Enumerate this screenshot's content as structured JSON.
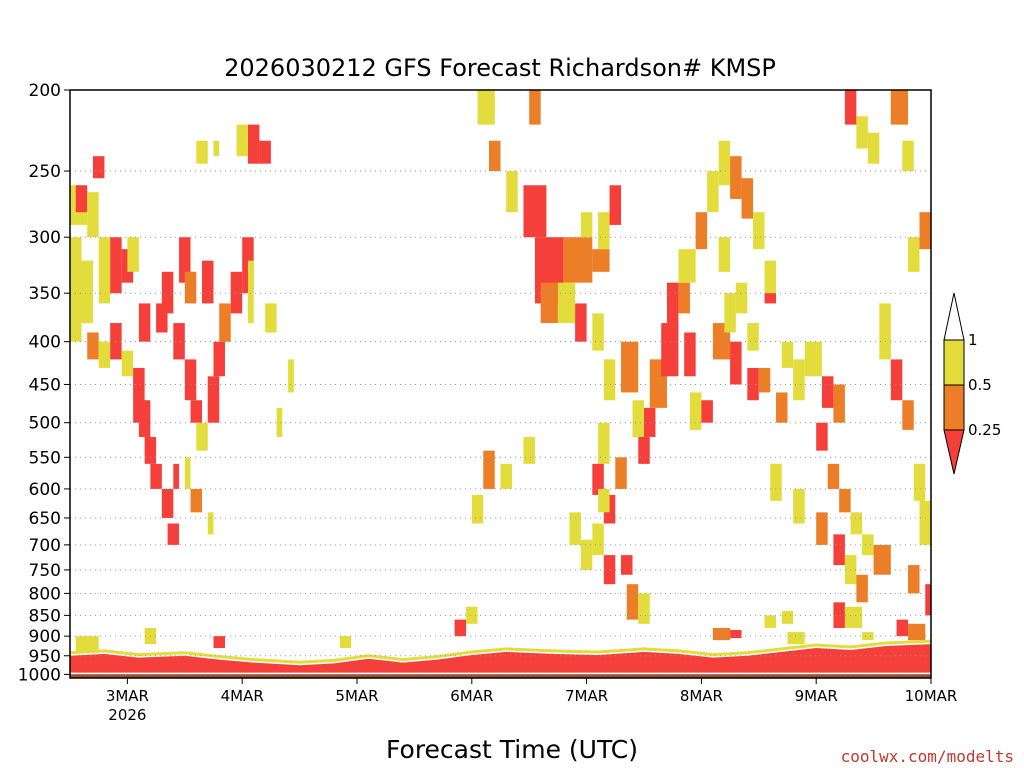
{
  "chart_data": {
    "type": "heatmap",
    "title": "2026030212 GFS Forecast Richardson# KMSP",
    "xlabel": "Forecast Time (UTC)",
    "ylabel": "",
    "credit": "coolwx.com/modelts",
    "x_ticks": [
      {
        "t": 0.5,
        "label": "3MAR",
        "sublabel": "2026"
      },
      {
        "t": 1.5,
        "label": "4MAR"
      },
      {
        "t": 2.5,
        "label": "5MAR"
      },
      {
        "t": 3.5,
        "label": "6MAR"
      },
      {
        "t": 4.5,
        "label": "7MAR"
      },
      {
        "t": 5.5,
        "label": "8MAR"
      },
      {
        "t": 6.5,
        "label": "9MAR"
      },
      {
        "t": 7.5,
        "label": "10MAR"
      }
    ],
    "x_range_days": [
      0,
      7.5
    ],
    "y_ticks": [
      200,
      250,
      300,
      350,
      400,
      450,
      500,
      550,
      600,
      650,
      700,
      750,
      800,
      850,
      900,
      950,
      1000
    ],
    "y_range_hpa": [
      200,
      1010
    ],
    "y_scale": "pressure (log-like, decreasing upward)",
    "grid": "dotted horizontal lines at pressure levels",
    "colorbar": {
      "labels": [
        "1",
        "0.5",
        "0.25"
      ],
      "bins": [
        {
          "range": "0.5-1",
          "color": "#e2dd3c"
        },
        {
          "range": "0.25-0.5",
          "color": "#ec7e28"
        },
        {
          "range": "<0.25",
          "color": "#f43f3a"
        }
      ],
      "above_color": "#ffffff"
    },
    "surface_color": "#9a4f2e",
    "colors": {
      "yellow": "#e2dd3c",
      "orange": "#ec7e28",
      "red": "#f43f3a"
    },
    "cells": [
      [
        0.0,
        0.15,
        260,
        290,
        "yellow"
      ],
      [
        0.05,
        0.15,
        260,
        280,
        "red"
      ],
      [
        0.15,
        0.25,
        265,
        300,
        "yellow"
      ],
      [
        0.2,
        0.3,
        240,
        255,
        "red"
      ],
      [
        0.25,
        0.35,
        300,
        360,
        "yellow"
      ],
      [
        0.35,
        0.45,
        300,
        350,
        "red"
      ],
      [
        0.45,
        0.55,
        310,
        340,
        "red"
      ],
      [
        0.5,
        0.6,
        300,
        330,
        "yellow"
      ],
      [
        0.0,
        0.1,
        300,
        400,
        "yellow"
      ],
      [
        0.1,
        0.2,
        320,
        380,
        "yellow"
      ],
      [
        0.15,
        0.25,
        390,
        420,
        "orange"
      ],
      [
        0.25,
        0.35,
        400,
        430,
        "yellow"
      ],
      [
        0.35,
        0.45,
        380,
        420,
        "red"
      ],
      [
        0.45,
        0.55,
        410,
        440,
        "yellow"
      ],
      [
        0.55,
        0.65,
        430,
        500,
        "red"
      ],
      [
        0.6,
        0.7,
        470,
        520,
        "red"
      ],
      [
        0.65,
        0.75,
        520,
        560,
        "red"
      ],
      [
        0.7,
        0.8,
        560,
        600,
        "red"
      ],
      [
        0.8,
        0.9,
        600,
        650,
        "red"
      ],
      [
        0.85,
        0.95,
        660,
        700,
        "red"
      ],
      [
        0.6,
        0.7,
        360,
        400,
        "red"
      ],
      [
        0.75,
        0.85,
        360,
        390,
        "red"
      ],
      [
        0.9,
        1.0,
        380,
        420,
        "red"
      ],
      [
        1.0,
        1.1,
        420,
        470,
        "red"
      ],
      [
        1.05,
        1.15,
        470,
        500,
        "red"
      ],
      [
        1.1,
        1.2,
        500,
        540,
        "yellow"
      ],
      [
        1.2,
        1.3,
        440,
        500,
        "red"
      ],
      [
        1.25,
        1.35,
        400,
        440,
        "red"
      ],
      [
        1.3,
        1.4,
        360,
        400,
        "orange"
      ],
      [
        0.95,
        1.05,
        300,
        340,
        "red"
      ],
      [
        1.0,
        1.1,
        330,
        360,
        "orange"
      ],
      [
        1.15,
        1.25,
        320,
        360,
        "red"
      ],
      [
        1.4,
        1.5,
        330,
        370,
        "red"
      ],
      [
        1.5,
        1.6,
        300,
        350,
        "red"
      ],
      [
        1.55,
        1.65,
        220,
        245,
        "red"
      ],
      [
        1.45,
        1.55,
        220,
        240,
        "yellow"
      ],
      [
        1.65,
        1.75,
        230,
        245,
        "red"
      ],
      [
        1.1,
        1.2,
        230,
        245,
        "yellow"
      ],
      [
        1.25,
        1.3,
        230,
        240,
        "yellow"
      ],
      [
        0.8,
        0.9,
        330,
        370,
        "red"
      ],
      [
        0.9,
        0.95,
        560,
        600,
        "red"
      ],
      [
        1.0,
        1.05,
        550,
        600,
        "yellow"
      ],
      [
        1.05,
        1.15,
        600,
        640,
        "orange"
      ],
      [
        1.2,
        1.25,
        640,
        680,
        "yellow"
      ],
      [
        1.55,
        1.6,
        320,
        380,
        "yellow"
      ],
      [
        1.7,
        1.8,
        360,
        390,
        "yellow"
      ],
      [
        1.8,
        1.85,
        480,
        520,
        "yellow"
      ],
      [
        1.9,
        1.95,
        420,
        460,
        "yellow"
      ],
      [
        3.55,
        3.7,
        200,
        220,
        "yellow"
      ],
      [
        3.65,
        3.75,
        230,
        250,
        "orange"
      ],
      [
        3.8,
        3.9,
        250,
        280,
        "yellow"
      ],
      [
        3.95,
        4.15,
        260,
        300,
        "red"
      ],
      [
        4.05,
        4.3,
        300,
        360,
        "red"
      ],
      [
        4.3,
        4.55,
        300,
        340,
        "orange"
      ],
      [
        4.55,
        4.7,
        310,
        330,
        "orange"
      ],
      [
        4.45,
        4.55,
        280,
        300,
        "yellow"
      ],
      [
        4.6,
        4.7,
        280,
        310,
        "yellow"
      ],
      [
        4.7,
        4.8,
        260,
        290,
        "red"
      ],
      [
        4.0,
        4.1,
        200,
        220,
        "orange"
      ],
      [
        4.1,
        4.25,
        340,
        380,
        "orange"
      ],
      [
        4.25,
        4.4,
        340,
        380,
        "yellow"
      ],
      [
        4.4,
        4.5,
        360,
        400,
        "red"
      ],
      [
        4.55,
        4.65,
        370,
        410,
        "yellow"
      ],
      [
        4.65,
        4.75,
        420,
        470,
        "yellow"
      ],
      [
        4.8,
        4.95,
        400,
        460,
        "orange"
      ],
      [
        4.9,
        5.0,
        470,
        520,
        "yellow"
      ],
      [
        4.75,
        4.85,
        550,
        600,
        "orange"
      ],
      [
        4.95,
        5.05,
        520,
        560,
        "red"
      ],
      [
        5.0,
        5.1,
        480,
        520,
        "red"
      ],
      [
        5.05,
        5.2,
        420,
        480,
        "orange"
      ],
      [
        5.15,
        5.3,
        380,
        440,
        "red"
      ],
      [
        5.2,
        5.3,
        340,
        390,
        "red"
      ],
      [
        5.3,
        5.4,
        340,
        370,
        "orange"
      ],
      [
        5.35,
        5.45,
        390,
        440,
        "red"
      ],
      [
        5.4,
        5.5,
        460,
        510,
        "yellow"
      ],
      [
        5.5,
        5.6,
        470,
        500,
        "red"
      ],
      [
        5.6,
        5.75,
        380,
        420,
        "orange"
      ],
      [
        5.8,
        5.9,
        340,
        370,
        "yellow"
      ],
      [
        5.9,
        6.0,
        380,
        410,
        "yellow"
      ],
      [
        5.9,
        6.0,
        430,
        470,
        "red"
      ],
      [
        6.0,
        6.1,
        430,
        460,
        "orange"
      ],
      [
        6.15,
        6.25,
        460,
        500,
        "orange"
      ],
      [
        6.05,
        6.15,
        330,
        360,
        "red"
      ],
      [
        6.2,
        6.3,
        400,
        430,
        "yellow"
      ],
      [
        6.3,
        6.4,
        420,
        470,
        "yellow"
      ],
      [
        6.4,
        6.55,
        400,
        440,
        "yellow"
      ],
      [
        6.55,
        6.65,
        440,
        480,
        "red"
      ],
      [
        6.65,
        6.75,
        450,
        500,
        "orange"
      ],
      [
        6.5,
        6.6,
        500,
        540,
        "red"
      ],
      [
        6.6,
        6.7,
        560,
        600,
        "orange"
      ],
      [
        6.7,
        6.8,
        600,
        640,
        "orange"
      ],
      [
        6.8,
        6.9,
        640,
        680,
        "yellow"
      ],
      [
        6.9,
        7.0,
        680,
        720,
        "yellow"
      ],
      [
        7.0,
        7.15,
        700,
        760,
        "orange"
      ],
      [
        7.15,
        7.3,
        200,
        220,
        "orange"
      ],
      [
        7.25,
        7.35,
        230,
        250,
        "yellow"
      ],
      [
        7.3,
        7.4,
        300,
        330,
        "yellow"
      ],
      [
        7.4,
        7.5,
        280,
        310,
        "orange"
      ],
      [
        6.75,
        6.85,
        200,
        220,
        "red"
      ],
      [
        6.85,
        6.95,
        215,
        235,
        "yellow"
      ],
      [
        6.95,
        7.05,
        225,
        245,
        "yellow"
      ],
      [
        7.05,
        7.15,
        360,
        420,
        "yellow"
      ],
      [
        7.15,
        7.25,
        420,
        470,
        "red"
      ],
      [
        7.25,
        7.35,
        470,
        510,
        "orange"
      ],
      [
        7.35,
        7.45,
        560,
        620,
        "yellow"
      ],
      [
        7.4,
        7.5,
        620,
        700,
        "yellow"
      ],
      [
        7.3,
        7.4,
        740,
        800,
        "orange"
      ],
      [
        7.45,
        7.5,
        780,
        850,
        "red"
      ],
      [
        6.1,
        6.2,
        560,
        620,
        "yellow"
      ],
      [
        6.3,
        6.4,
        600,
        660,
        "yellow"
      ],
      [
        6.5,
        6.6,
        640,
        700,
        "orange"
      ],
      [
        6.65,
        6.75,
        680,
        740,
        "red"
      ],
      [
        6.75,
        6.85,
        720,
        780,
        "yellow"
      ],
      [
        6.85,
        6.95,
        760,
        820,
        "orange"
      ],
      [
        5.3,
        5.45,
        310,
        340,
        "yellow"
      ],
      [
        5.45,
        5.55,
        280,
        310,
        "orange"
      ],
      [
        5.55,
        5.65,
        250,
        280,
        "yellow"
      ],
      [
        5.65,
        5.75,
        230,
        260,
        "yellow"
      ],
      [
        5.75,
        5.85,
        240,
        270,
        "orange"
      ],
      [
        5.85,
        5.95,
        255,
        285,
        "orange"
      ],
      [
        5.95,
        6.05,
        280,
        310,
        "yellow"
      ],
      [
        6.05,
        6.15,
        320,
        350,
        "yellow"
      ],
      [
        5.65,
        5.75,
        300,
        330,
        "yellow"
      ],
      [
        5.7,
        5.8,
        350,
        390,
        "yellow"
      ],
      [
        5.75,
        5.85,
        400,
        450,
        "red"
      ],
      [
        4.6,
        4.7,
        500,
        560,
        "yellow"
      ],
      [
        4.55,
        4.65,
        560,
        610,
        "red"
      ],
      [
        4.65,
        4.75,
        610,
        660,
        "red"
      ],
      [
        4.55,
        4.65,
        660,
        720,
        "yellow"
      ],
      [
        4.65,
        4.75,
        720,
        780,
        "red"
      ],
      [
        4.6,
        4.7,
        600,
        640,
        "yellow"
      ],
      [
        3.6,
        3.7,
        540,
        600,
        "orange"
      ],
      [
        3.75,
        3.85,
        560,
        600,
        "yellow"
      ],
      [
        3.95,
        4.05,
        520,
        560,
        "yellow"
      ],
      [
        3.5,
        3.6,
        610,
        660,
        "yellow"
      ],
      [
        4.35,
        4.45,
        640,
        700,
        "yellow"
      ],
      [
        4.45,
        4.55,
        690,
        750,
        "yellow"
      ],
      [
        4.8,
        4.9,
        720,
        760,
        "red"
      ],
      [
        4.85,
        4.95,
        780,
        860,
        "orange"
      ],
      [
        4.95,
        5.05,
        800,
        870,
        "yellow"
      ],
      [
        3.45,
        3.55,
        830,
        870,
        "yellow"
      ],
      [
        3.35,
        3.45,
        860,
        900,
        "red"
      ],
      [
        2.35,
        2.45,
        900,
        930,
        "yellow"
      ],
      [
        1.25,
        1.35,
        900,
        930,
        "red"
      ],
      [
        0.65,
        0.75,
        880,
        920,
        "yellow"
      ],
      [
        0.05,
        0.25,
        900,
        940,
        "yellow"
      ],
      [
        5.6,
        5.75,
        880,
        910,
        "orange"
      ],
      [
        5.75,
        5.85,
        885,
        905,
        "red"
      ],
      [
        6.25,
        6.4,
        890,
        920,
        "yellow"
      ],
      [
        6.65,
        6.75,
        820,
        880,
        "red"
      ],
      [
        6.75,
        6.9,
        830,
        880,
        "yellow"
      ],
      [
        6.9,
        7.0,
        890,
        910,
        "yellow"
      ],
      [
        7.2,
        7.3,
        860,
        900,
        "red"
      ],
      [
        7.3,
        7.45,
        870,
        910,
        "orange"
      ],
      [
        6.2,
        6.3,
        840,
        870,
        "yellow"
      ],
      [
        6.05,
        6.15,
        850,
        880,
        "yellow"
      ]
    ],
    "boundary_layer": {
      "description": "continuous red layer of low Richardson number near surface",
      "top_profile": [
        [
          0.0,
          950
        ],
        [
          0.3,
          945
        ],
        [
          0.6,
          955
        ],
        [
          1.0,
          950
        ],
        [
          1.3,
          960
        ],
        [
          1.6,
          968
        ],
        [
          2.0,
          975
        ],
        [
          2.3,
          970
        ],
        [
          2.6,
          958
        ],
        [
          2.9,
          968
        ],
        [
          3.2,
          960
        ],
        [
          3.5,
          948
        ],
        [
          3.8,
          940
        ],
        [
          4.2,
          945
        ],
        [
          4.6,
          948
        ],
        [
          5.0,
          940
        ],
        [
          5.3,
          945
        ],
        [
          5.6,
          955
        ],
        [
          5.9,
          950
        ],
        [
          6.2,
          940
        ],
        [
          6.5,
          930
        ],
        [
          6.8,
          935
        ],
        [
          7.1,
          925
        ],
        [
          7.5,
          920
        ]
      ],
      "bottom_hpa": 1000
    },
    "surface_top_hpa": 1000
  }
}
